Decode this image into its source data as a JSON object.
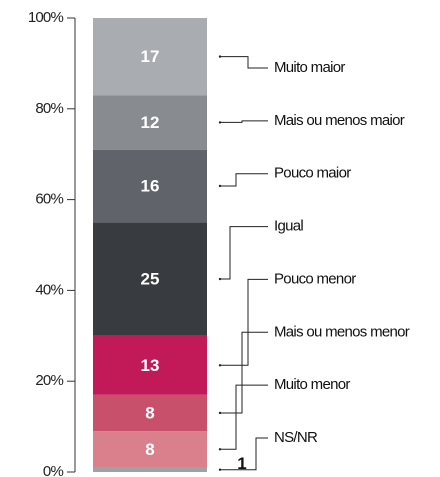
{
  "chart_data": {
    "type": "stacked-bar",
    "series": [
      {
        "name": "NS/NR",
        "color": "#9ea2a7",
        "values": [
          1
        ]
      },
      {
        "name": "Muito menor",
        "color": "#d9808c",
        "values": [
          8
        ]
      },
      {
        "name": "Mais ou menos menor",
        "color": "#c9506a",
        "values": [
          8
        ]
      },
      {
        "name": "Pouco menor",
        "color": "#c21a58",
        "values": [
          13
        ]
      },
      {
        "name": "Igual",
        "color": "#383b3f",
        "values": [
          25
        ]
      },
      {
        "name": "Pouco maior",
        "color": "#60646a",
        "values": [
          16
        ]
      },
      {
        "name": "Mais ou menos maior",
        "color": "#888c91",
        "values": [
          12
        ]
      },
      {
        "name": "Muito maior",
        "color": "#a9adb2",
        "values": [
          17
        ]
      }
    ],
    "ylim": [
      0,
      100
    ],
    "yticks": [
      {
        "value": 0,
        "label": "0%"
      },
      {
        "value": 20,
        "label": "20%"
      },
      {
        "value": 40,
        "label": "40%"
      },
      {
        "value": 60,
        "label": "60%"
      },
      {
        "value": 80,
        "label": "80%"
      },
      {
        "value": 100,
        "label": "100%"
      }
    ]
  }
}
